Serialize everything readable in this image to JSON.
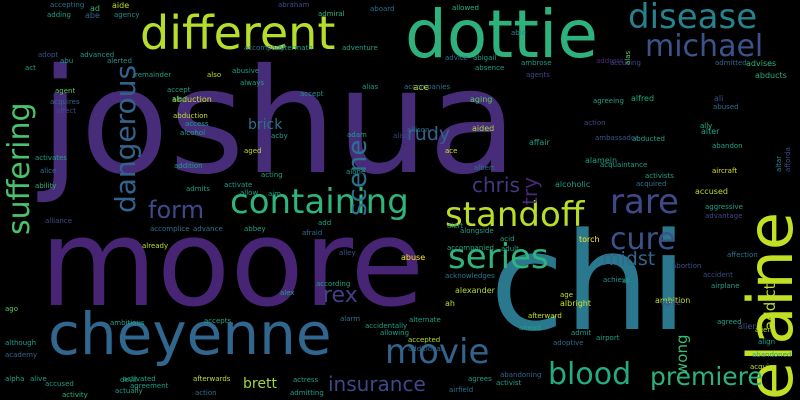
{
  "words": [
    {
      "text": "joshua",
      "color": "#472c7a"
    },
    {
      "text": "moore",
      "color": "#482475"
    },
    {
      "text": "chi",
      "color": "#2a788e"
    },
    {
      "text": "dottie",
      "color": "#2db27d"
    },
    {
      "text": "elaine",
      "color": "#c2df23"
    },
    {
      "text": "cheyenne",
      "color": "#31668e"
    },
    {
      "text": "different",
      "color": "#b5de2b"
    },
    {
      "text": "containing",
      "color": "#2fb47c"
    },
    {
      "text": "standoff",
      "color": "#b8de29"
    },
    {
      "text": "disease",
      "color": "#26828e"
    },
    {
      "text": "michael",
      "color": "#3b528b"
    },
    {
      "text": "suffering",
      "color": "#4ac16d"
    },
    {
      "text": "dangerous",
      "color": "#33638d"
    },
    {
      "text": "scene",
      "color": "#2c728e"
    },
    {
      "text": "rare",
      "color": "#3e4989"
    },
    {
      "text": "cure",
      "color": "#3b528b"
    },
    {
      "text": "series",
      "color": "#2fb47c"
    },
    {
      "text": "movie",
      "color": "#33638d"
    },
    {
      "text": "blood",
      "color": "#25ab82"
    },
    {
      "text": "premiere",
      "color": "#2db27d"
    },
    {
      "text": "form",
      "color": "#3e4989"
    },
    {
      "text": "chris",
      "color": "#453781"
    },
    {
      "text": "rex",
      "color": "#424086"
    },
    {
      "text": "insurance",
      "color": "#3f4788"
    },
    {
      "text": "rudy",
      "color": "#33638d"
    },
    {
      "text": "brick",
      "color": "#2d708e"
    },
    {
      "text": "try",
      "color": "#482878"
    },
    {
      "text": "midst",
      "color": "#31668e"
    },
    {
      "text": "wong",
      "color": "#3dbc74"
    },
    {
      "text": "addict",
      "color": "#b8de29"
    },
    {
      "text": "brett",
      "color": "#9fda3a"
    },
    {
      "text": "abduction",
      "color": "#c2df23"
    },
    {
      "text": "aircraft",
      "color": "#d8e219"
    },
    {
      "text": "accused",
      "color": "#b5de2b"
    },
    {
      "text": "torch",
      "color": "#fde725"
    },
    {
      "text": "abuse",
      "color": "#fde725"
    },
    {
      "text": "ah",
      "color": "#b5de2b"
    },
    {
      "text": "albright",
      "color": "#c8e020"
    },
    {
      "text": "ambition",
      "color": "#bddf26"
    },
    {
      "text": "alexander",
      "color": "#addc30"
    },
    {
      "text": "ace",
      "color": "#d8e219"
    },
    {
      "text": "accompanied",
      "color": "#20a386"
    },
    {
      "text": "acknowledges",
      "color": "#2a788e"
    },
    {
      "text": "affection",
      "color": "#2a788e"
    },
    {
      "text": "alien",
      "color": "#3b528b"
    },
    {
      "text": "accept",
      "color": "#21918c"
    },
    {
      "text": "abducted",
      "color": "#1fa187"
    },
    {
      "text": "abandon",
      "color": "#1fa187"
    },
    {
      "text": "alter",
      "color": "#22a884"
    },
    {
      "text": "abused",
      "color": "#2c728e"
    },
    {
      "text": "ally",
      "color": "#35b779"
    },
    {
      "text": "ali",
      "color": "#3b528b"
    },
    {
      "text": "alcoholic",
      "color": "#1f9e89"
    },
    {
      "text": "albert",
      "color": "#2c728e"
    },
    {
      "text": "aided",
      "color": "#a8db34"
    },
    {
      "text": "aging",
      "color": "#5ec962"
    },
    {
      "text": "affair",
      "color": "#1f9e89"
    },
    {
      "text": "alamein",
      "color": "#1f9e89"
    },
    {
      "text": "alfred",
      "color": "#25ab82"
    },
    {
      "text": "abducts",
      "color": "#27ad81"
    },
    {
      "text": "admitted",
      "color": "#31668e"
    },
    {
      "text": "advises",
      "color": "#2fb47c"
    },
    {
      "text": "altar",
      "color": "#238a8d"
    },
    {
      "text": "afforda",
      "color": "#3e4989"
    },
    {
      "text": "allowed",
      "color": "#2db27d"
    },
    {
      "text": "abigail",
      "color": "#1f9e89"
    },
    {
      "text": "ambrose",
      "color": "#1f9e89"
    },
    {
      "text": "advice",
      "color": "#2c728e"
    },
    {
      "text": "able",
      "color": "#21918c"
    },
    {
      "text": "abraham",
      "color": "#3e4989"
    },
    {
      "text": "admiral",
      "color": "#2db27d"
    },
    {
      "text": "aboard",
      "color": "#2d708e"
    },
    {
      "text": "agency",
      "color": "#21918c"
    },
    {
      "text": "aide",
      "color": "#bddf26"
    },
    {
      "text": "abe",
      "color": "#31668e"
    },
    {
      "text": "ad",
      "color": "#2db27d"
    },
    {
      "text": "accepting",
      "color": "#2d708e"
    },
    {
      "text": "adding",
      "color": "#1f9e89"
    },
    {
      "text": "alerted",
      "color": "#21918c"
    },
    {
      "text": "advanced",
      "color": "#1f9e89"
    },
    {
      "text": "abu",
      "color": "#1fa187"
    },
    {
      "text": "adopt",
      "color": "#3b528b"
    },
    {
      "text": "act",
      "color": "#1f9e89"
    },
    {
      "text": "agent",
      "color": "#5ec962"
    },
    {
      "text": "affect",
      "color": "#3e4989"
    },
    {
      "text": "acquires",
      "color": "#31668e"
    },
    {
      "text": "activates",
      "color": "#1fa187"
    },
    {
      "text": "alice",
      "color": "#2d708e"
    },
    {
      "text": "ability",
      "color": "#2db27d"
    },
    {
      "text": "alliance",
      "color": "#3e4989"
    },
    {
      "text": "accomplice",
      "color": "#2d708e"
    },
    {
      "text": "advance",
      "color": "#2c728e"
    },
    {
      "text": "abbey",
      "color": "#1fa187"
    },
    {
      "text": "afraid",
      "color": "#2c728e"
    },
    {
      "text": "already",
      "color": "#bddf26"
    },
    {
      "text": "ago",
      "color": "#5ec962"
    },
    {
      "text": "ambitious",
      "color": "#1fa187"
    },
    {
      "text": "accepts",
      "color": "#1fa187"
    },
    {
      "text": "alarm",
      "color": "#2c728e"
    },
    {
      "text": "although",
      "color": "#1f9e89"
    },
    {
      "text": "academy",
      "color": "#31668e"
    },
    {
      "text": "alpha",
      "color": "#1fa187"
    },
    {
      "text": "alive",
      "color": "#1f9e89"
    },
    {
      "text": "accused",
      "color": "#1f9e89"
    },
    {
      "text": "activity",
      "color": "#2db27d"
    },
    {
      "text": "devil",
      "color": "#1fa187"
    },
    {
      "text": "activated",
      "color": "#1fa187"
    },
    {
      "text": "actually",
      "color": "#1f9e89"
    },
    {
      "text": "agreement",
      "color": "#1f9e89"
    },
    {
      "text": "afterwards",
      "color": "#bddf26"
    },
    {
      "text": "action",
      "color": "#2c728e"
    },
    {
      "text": "actress",
      "color": "#1fa187"
    },
    {
      "text": "admitting",
      "color": "#1f9e89"
    },
    {
      "text": "alex",
      "color": "#1fa187"
    },
    {
      "text": "according",
      "color": "#1f9e89"
    },
    {
      "text": "alley",
      "color": "#3b528b"
    },
    {
      "text": "accidentally",
      "color": "#1fa187"
    },
    {
      "text": "allowing",
      "color": "#1f9e89"
    },
    {
      "text": "alternate",
      "color": "#1fa187"
    },
    {
      "text": "accepted",
      "color": "#b5de2b"
    },
    {
      "text": "additional",
      "color": "#2d708e"
    },
    {
      "text": "agrees",
      "color": "#1f9e89"
    },
    {
      "text": "activist",
      "color": "#1fa187"
    },
    {
      "text": "airfield",
      "color": "#2c728e"
    },
    {
      "text": "abandoning",
      "color": "#31668e"
    },
    {
      "text": "acid",
      "color": "#1fa187"
    },
    {
      "text": "adult",
      "color": "#1f9e89"
    },
    {
      "text": "alongside",
      "color": "#1fa187"
    },
    {
      "text": "alert",
      "color": "#1f9e89"
    },
    {
      "text": "age",
      "color": "#bddf26"
    },
    {
      "text": "afterward",
      "color": "#c8e020"
    },
    {
      "text": "ahead",
      "color": "#1fa187"
    },
    {
      "text": "admit",
      "color": "#1f9e89"
    },
    {
      "text": "adoptive",
      "color": "#31668e"
    },
    {
      "text": "airport",
      "color": "#1fa187"
    },
    {
      "text": "achieve",
      "color": "#21918c"
    },
    {
      "text": "al",
      "color": "#1f9e89"
    },
    {
      "text": "agree",
      "color": "#3e4989"
    },
    {
      "text": "abortion",
      "color": "#3b528b"
    },
    {
      "text": "accident",
      "color": "#3e4989"
    },
    {
      "text": "align",
      "color": "#1fa187"
    },
    {
      "text": "acquire",
      "color": "#bddf26"
    },
    {
      "text": "abandoned",
      "color": "#1f9e89"
    },
    {
      "text": "alien",
      "color": "#bddf26"
    },
    {
      "text": "agreed",
      "color": "#1fa187"
    },
    {
      "text": "airplane",
      "color": "#1f9e89"
    },
    {
      "text": "advantage",
      "color": "#3e4989"
    },
    {
      "text": "aggressive",
      "color": "#1fa187"
    },
    {
      "text": "acquired",
      "color": "#2c728e"
    },
    {
      "text": "activists",
      "color": "#1fa187"
    },
    {
      "text": "acquaintance",
      "color": "#1f9e89"
    },
    {
      "text": "ambassador",
      "color": "#3b528b"
    },
    {
      "text": "action",
      "color": "#3e4989"
    },
    {
      "text": "agreeing",
      "color": "#1fa187"
    },
    {
      "text": "address",
      "color": "#482878"
    },
    {
      "text": "alas",
      "color": "#5ec962"
    },
    {
      "text": "absence",
      "color": "#1f9e89"
    },
    {
      "text": "agents",
      "color": "#3e4989"
    },
    {
      "text": "accusing",
      "color": "#3e4989"
    },
    {
      "text": "allison",
      "color": "#2c728e"
    },
    {
      "text": "alison",
      "color": "#3e4989"
    },
    {
      "text": "adam",
      "color": "#1f9e89"
    },
    {
      "text": "ace",
      "color": "#c8e020"
    },
    {
      "text": "accompanies",
      "color": "#2c728e"
    },
    {
      "text": "alone",
      "color": "#1f9e89"
    },
    {
      "text": "add",
      "color": "#1fa187"
    },
    {
      "text": "aim",
      "color": "#1f9e89"
    },
    {
      "text": "allow",
      "color": "#1fa187"
    },
    {
      "text": "activate",
      "color": "#1f9e89"
    },
    {
      "text": "admits",
      "color": "#1fa187"
    },
    {
      "text": "addition",
      "color": "#1f9e89"
    },
    {
      "text": "acting",
      "color": "#1fa187"
    },
    {
      "text": "acby",
      "color": "#1f9e89"
    },
    {
      "text": "aged",
      "color": "#bddf26"
    },
    {
      "text": "alcohol",
      "color": "#1fa187"
    },
    {
      "text": "access",
      "color": "#1f9e89"
    },
    {
      "text": "abduction",
      "color": "#bddf26"
    },
    {
      "text": "alec",
      "color": "#1f9e89"
    },
    {
      "text": "always",
      "color": "#1fa187"
    },
    {
      "text": "abusive",
      "color": "#1f9e89"
    },
    {
      "text": "also",
      "color": "#bddf26"
    },
    {
      "text": "accompany",
      "color": "#2c728e"
    },
    {
      "text": "aftermath",
      "color": "#1fa187"
    },
    {
      "text": "adventure",
      "color": "#1f9e89"
    },
    {
      "text": "alias",
      "color": "#1fa187"
    },
    {
      "text": "remainder",
      "color": "#1fa187"
    },
    {
      "text": "accept",
      "color": "#1f9e89"
    }
  ]
}
